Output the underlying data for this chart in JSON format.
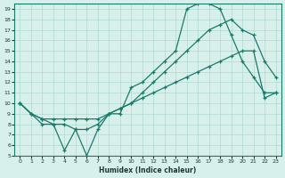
{
  "xlabel": "Humidex (Indice chaleur)",
  "bg_color": "#d8f0ec",
  "grid_color": "#b0d8d0",
  "line_color": "#1a7a6a",
  "xlim": [
    -0.5,
    23.5
  ],
  "ylim": [
    5,
    19.5
  ],
  "yticks": [
    5,
    6,
    7,
    8,
    9,
    10,
    11,
    12,
    13,
    14,
    15,
    16,
    17,
    18,
    19
  ],
  "xticks": [
    0,
    1,
    2,
    3,
    4,
    5,
    6,
    7,
    8,
    9,
    10,
    11,
    12,
    13,
    14,
    15,
    16,
    17,
    18,
    19,
    20,
    21,
    22,
    23
  ],
  "line1_x": [
    0,
    1,
    2,
    3,
    4,
    5,
    6,
    7,
    8,
    9,
    10,
    11,
    12,
    13,
    14,
    15,
    16,
    17,
    18,
    19,
    20,
    21,
    22,
    23
  ],
  "line1_y": [
    10,
    9,
    8,
    8,
    5.5,
    7.5,
    5,
    7.5,
    9,
    9,
    11.5,
    12,
    13,
    14,
    15,
    19,
    19.5,
    19.5,
    19,
    16.5,
    14,
    12.5,
    11,
    11
  ],
  "line2_x": [
    0,
    1,
    2,
    3,
    4,
    5,
    6,
    7,
    8,
    9,
    10,
    11,
    12,
    13,
    14,
    15,
    16,
    17,
    18,
    19,
    20,
    21,
    22,
    23
  ],
  "line2_y": [
    10,
    9,
    8.5,
    8,
    8,
    7.5,
    7.5,
    8,
    9,
    9.5,
    10,
    11,
    12,
    13,
    14,
    15,
    16,
    17,
    17.5,
    18,
    17,
    16.5,
    14,
    12.5
  ],
  "line3_x": [
    0,
    1,
    2,
    3,
    4,
    5,
    6,
    7,
    8,
    9,
    10,
    11,
    12,
    13,
    14,
    15,
    16,
    17,
    18,
    19,
    20,
    21,
    22,
    23
  ],
  "line3_y": [
    10,
    9,
    8.5,
    8.5,
    8.5,
    8.5,
    8.5,
    8.5,
    9,
    9.5,
    10,
    10.5,
    11,
    11.5,
    12,
    12.5,
    13,
    13.5,
    14,
    14.5,
    15,
    15,
    10.5,
    11
  ]
}
